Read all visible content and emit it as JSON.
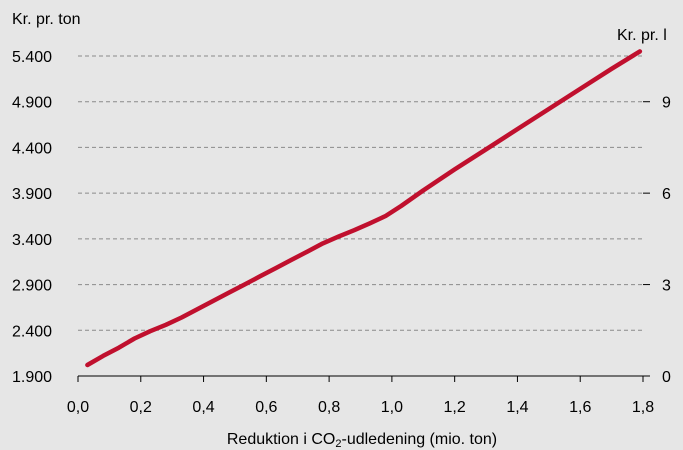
{
  "chart_data": {
    "type": "line",
    "title": "",
    "xlabel": "Reduktion i CO2-udledening (mio. ton)",
    "xlabel_parts": [
      "Reduktion i CO",
      "2",
      "-udledening (mio. ton)"
    ],
    "ylabel_left": "Kr. pr. ton",
    "ylabel_right": "Kr. pr. l",
    "xlim": [
      0.0,
      1.8
    ],
    "ylim_left": [
      1900,
      5400
    ],
    "ylim_right": [
      0,
      10.5
    ],
    "x_ticks": [
      "0,0",
      "0,2",
      "0,4",
      "0,6",
      "0,8",
      "1,0",
      "1,2",
      "1,4",
      "1,6",
      "1,8"
    ],
    "x_tick_values": [
      0.0,
      0.2,
      0.4,
      0.6,
      0.8,
      1.0,
      1.2,
      1.4,
      1.6,
      1.8
    ],
    "y_left_ticks": [
      "1.900",
      "2.400",
      "2.900",
      "3.400",
      "3.900",
      "4.400",
      "4.900",
      "5.400"
    ],
    "y_left_tick_values": [
      1900,
      2400,
      2900,
      3400,
      3900,
      4400,
      4900,
      5400
    ],
    "y_right_ticks": [
      "0",
      "3",
      "6",
      "9"
    ],
    "y_right_tick_values": [
      0,
      3,
      6,
      9
    ],
    "grid": true,
    "legend": "none",
    "series": [
      {
        "color": "#c0102e",
        "axis": "left",
        "x": [
          0.03,
          0.08,
          0.13,
          0.18,
          0.23,
          0.28,
          0.33,
          0.38,
          0.43,
          0.48,
          0.53,
          0.58,
          0.63,
          0.68,
          0.73,
          0.78,
          0.83,
          0.88,
          0.93,
          0.98,
          1.03,
          1.1,
          1.2,
          1.3,
          1.4,
          1.5,
          1.6,
          1.7,
          1.79
        ],
        "y": [
          2020,
          2120,
          2210,
          2310,
          2390,
          2460,
          2540,
          2630,
          2720,
          2810,
          2900,
          2990,
          3080,
          3170,
          3260,
          3350,
          3425,
          3495,
          3570,
          3650,
          3760,
          3930,
          4160,
          4380,
          4600,
          4820,
          5040,
          5260,
          5450
        ]
      }
    ]
  }
}
